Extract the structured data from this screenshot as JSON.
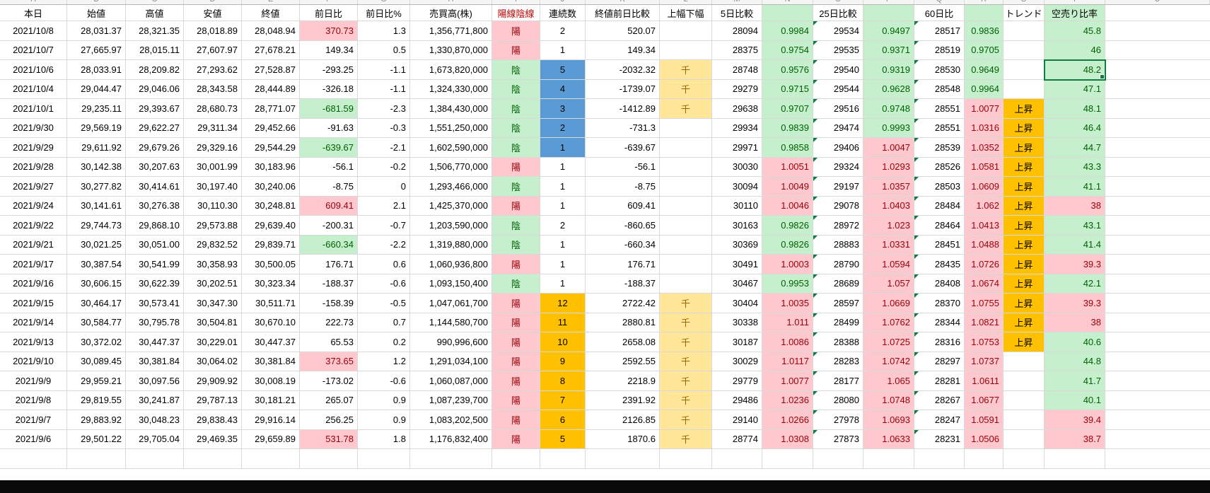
{
  "colors": {
    "good_bg": "#C6EFCE",
    "good_text": "#006100",
    "bad_bg": "#FFC7CE",
    "bad_text": "#9C0006",
    "streak_blue": "#5B9BD5",
    "streak_amber": "#FFC000",
    "flag_bg": "#FFE699",
    "flag_text": "#9C6500",
    "trend_bg": "#FFC000",
    "header_candle_text": "#C00000",
    "selection": "#107C41",
    "grid": "#D9D9D9"
  },
  "sheet": {
    "column_letters": [
      "A",
      "B",
      "C",
      "D",
      "E",
      "F",
      "G",
      "H",
      "I",
      "J",
      "K",
      "L",
      "M",
      "N",
      "O",
      "P",
      "Q",
      "R",
      "S",
      "T",
      "U"
    ],
    "headers": [
      {
        "key": "date",
        "label": "本日"
      },
      {
        "key": "open",
        "label": "始値"
      },
      {
        "key": "high",
        "label": "高値"
      },
      {
        "key": "low",
        "label": "安値"
      },
      {
        "key": "close",
        "label": "終値"
      },
      {
        "key": "change",
        "label": "前日比"
      },
      {
        "key": "change_pct",
        "label": "前日比%"
      },
      {
        "key": "volume",
        "label": "売買高(株)"
      },
      {
        "key": "candle",
        "label": "陽線陰線"
      },
      {
        "key": "streak",
        "label": "連続数"
      },
      {
        "key": "close_diff",
        "label": "終値前日比較"
      },
      {
        "key": "range_flag",
        "label": "上幅下幅"
      },
      {
        "key": "d5",
        "label": "5日比較"
      },
      {
        "key": "r1",
        "label": ""
      },
      {
        "key": "d25",
        "label": "25日比較"
      },
      {
        "key": "r2",
        "label": ""
      },
      {
        "key": "d60",
        "label": "60日比"
      },
      {
        "key": "r3",
        "label": ""
      },
      {
        "key": "trend",
        "label": "トレンド"
      },
      {
        "key": "short",
        "label": "空売り比率"
      }
    ],
    "selection": {
      "row_index": 2,
      "column": "short"
    },
    "rows": [
      {
        "date": "2021/10/8",
        "open": "28,031.37",
        "high": "28,321.35",
        "low": "28,018.89",
        "close": "28,048.94",
        "change": "370.73",
        "change_pct": "1.3",
        "volume": "1,356,771,800",
        "candle": "陽",
        "streak": "2",
        "streak_bg": "none",
        "close_diff": "520.07",
        "range_flag": "",
        "d5": "28094",
        "r1": "0.9984",
        "d25": "29534",
        "r2": "0.9497",
        "d60": "28517",
        "r3": "0.9836",
        "trend": "",
        "short": "45.8"
      },
      {
        "date": "2021/10/7",
        "open": "27,665.97",
        "high": "28,015.11",
        "low": "27,607.97",
        "close": "27,678.21",
        "change": "149.34",
        "change_pct": "0.5",
        "volume": "1,330,870,000",
        "candle": "陽",
        "streak": "1",
        "streak_bg": "none",
        "close_diff": "149.34",
        "range_flag": "",
        "d5": "28375",
        "r1": "0.9754",
        "d25": "29535",
        "r2": "0.9371",
        "d60": "28519",
        "r3": "0.9705",
        "trend": "",
        "short": "46"
      },
      {
        "date": "2021/10/6",
        "open": "28,033.91",
        "high": "28,209.82",
        "low": "27,293.62",
        "close": "27,528.87",
        "change": "-293.25",
        "change_pct": "-1.1",
        "volume": "1,673,820,000",
        "candle": "陰",
        "streak": "5",
        "streak_bg": "blue",
        "close_diff": "-2032.32",
        "range_flag": "千",
        "d5": "28748",
        "r1": "0.9576",
        "d25": "29540",
        "r2": "0.9319",
        "d60": "28530",
        "r3": "0.9649",
        "trend": "",
        "short": "48.2"
      },
      {
        "date": "2021/10/4",
        "open": "29,044.47",
        "high": "29,046.06",
        "low": "28,343.58",
        "close": "28,444.89",
        "change": "-326.18",
        "change_pct": "-1.1",
        "volume": "1,324,330,000",
        "candle": "陰",
        "streak": "4",
        "streak_bg": "blue",
        "close_diff": "-1739.07",
        "range_flag": "千",
        "d5": "29279",
        "r1": "0.9715",
        "d25": "29544",
        "r2": "0.9628",
        "d60": "28548",
        "r3": "0.9964",
        "trend": "",
        "short": "47.1"
      },
      {
        "date": "2021/10/1",
        "open": "29,235.11",
        "high": "29,393.67",
        "low": "28,680.73",
        "close": "28,771.07",
        "change": "-681.59",
        "change_pct": "-2.3",
        "volume": "1,384,430,000",
        "candle": "陰",
        "streak": "3",
        "streak_bg": "blue",
        "close_diff": "-1412.89",
        "range_flag": "千",
        "d5": "29638",
        "r1": "0.9707",
        "d25": "29516",
        "r2": "0.9748",
        "d60": "28551",
        "r3": "1.0077",
        "trend": "上昇",
        "short": "48.1"
      },
      {
        "date": "2021/9/30",
        "open": "29,569.19",
        "high": "29,622.27",
        "low": "29,311.34",
        "close": "29,452.66",
        "change": "-91.63",
        "change_pct": "-0.3",
        "volume": "1,551,250,000",
        "candle": "陰",
        "streak": "2",
        "streak_bg": "blue",
        "close_diff": "-731.3",
        "range_flag": "",
        "d5": "29934",
        "r1": "0.9839",
        "d25": "29474",
        "r2": "0.9993",
        "d60": "28551",
        "r3": "1.0316",
        "trend": "上昇",
        "short": "46.4"
      },
      {
        "date": "2021/9/29",
        "open": "29,611.92",
        "high": "29,679.26",
        "low": "29,329.16",
        "close": "29,544.29",
        "change": "-639.67",
        "change_pct": "-2.1",
        "volume": "1,602,590,000",
        "candle": "陰",
        "streak": "1",
        "streak_bg": "blue",
        "close_diff": "-639.67",
        "range_flag": "",
        "d5": "29971",
        "r1": "0.9858",
        "d25": "29406",
        "r2": "1.0047",
        "d60": "28539",
        "r3": "1.0352",
        "trend": "上昇",
        "short": "44.7"
      },
      {
        "date": "2021/9/28",
        "open": "30,142.38",
        "high": "30,207.63",
        "low": "30,001.99",
        "close": "30,183.96",
        "change": "-56.1",
        "change_pct": "-0.2",
        "volume": "1,506,770,000",
        "candle": "陽",
        "streak": "1",
        "streak_bg": "none",
        "close_diff": "-56.1",
        "range_flag": "",
        "d5": "30030",
        "r1": "1.0051",
        "d25": "29324",
        "r2": "1.0293",
        "d60": "28526",
        "r3": "1.0581",
        "trend": "上昇",
        "short": "43.3"
      },
      {
        "date": "2021/9/27",
        "open": "30,277.82",
        "high": "30,414.61",
        "low": "30,197.40",
        "close": "30,240.06",
        "change": "-8.75",
        "change_pct": "0",
        "volume": "1,293,466,000",
        "candle": "陰",
        "streak": "1",
        "streak_bg": "none",
        "close_diff": "-8.75",
        "range_flag": "",
        "d5": "30094",
        "r1": "1.0049",
        "d25": "29197",
        "r2": "1.0357",
        "d60": "28503",
        "r3": "1.0609",
        "trend": "上昇",
        "short": "41.1"
      },
      {
        "date": "2021/9/24",
        "open": "30,141.61",
        "high": "30,276.38",
        "low": "30,110.30",
        "close": "30,248.81",
        "change": "609.41",
        "change_pct": "2.1",
        "volume": "1,425,370,000",
        "candle": "陽",
        "streak": "1",
        "streak_bg": "none",
        "close_diff": "609.41",
        "range_flag": "",
        "d5": "30110",
        "r1": "1.0046",
        "d25": "29078",
        "r2": "1.0403",
        "d60": "28484",
        "r3": "1.062",
        "trend": "上昇",
        "short": "38"
      },
      {
        "date": "2021/9/22",
        "open": "29,744.73",
        "high": "29,868.10",
        "low": "29,573.88",
        "close": "29,639.40",
        "change": "-200.31",
        "change_pct": "-0.7",
        "volume": "1,203,590,000",
        "candle": "陰",
        "streak": "2",
        "streak_bg": "none",
        "close_diff": "-860.65",
        "range_flag": "",
        "d5": "30163",
        "r1": "0.9826",
        "d25": "28972",
        "r2": "1.023",
        "d60": "28464",
        "r3": "1.0413",
        "trend": "上昇",
        "short": "43.1"
      },
      {
        "date": "2021/9/21",
        "open": "30,021.25",
        "high": "30,051.00",
        "low": "29,832.52",
        "close": "29,839.71",
        "change": "-660.34",
        "change_pct": "-2.2",
        "volume": "1,319,880,000",
        "candle": "陰",
        "streak": "1",
        "streak_bg": "none",
        "close_diff": "-660.34",
        "range_flag": "",
        "d5": "30369",
        "r1": "0.9826",
        "d25": "28883",
        "r2": "1.0331",
        "d60": "28451",
        "r3": "1.0488",
        "trend": "上昇",
        "short": "41.4"
      },
      {
        "date": "2021/9/17",
        "open": "30,387.54",
        "high": "30,541.99",
        "low": "30,358.93",
        "close": "30,500.05",
        "change": "176.71",
        "change_pct": "0.6",
        "volume": "1,060,936,800",
        "candle": "陽",
        "streak": "1",
        "streak_bg": "none",
        "close_diff": "176.71",
        "range_flag": "",
        "d5": "30491",
        "r1": "1.0003",
        "d25": "28790",
        "r2": "1.0594",
        "d60": "28435",
        "r3": "1.0726",
        "trend": "上昇",
        "short": "39.3"
      },
      {
        "date": "2021/9/16",
        "open": "30,606.15",
        "high": "30,622.39",
        "low": "30,202.51",
        "close": "30,323.34",
        "change": "-188.37",
        "change_pct": "-0.6",
        "volume": "1,093,150,400",
        "candle": "陰",
        "streak": "1",
        "streak_bg": "none",
        "close_diff": "-188.37",
        "range_flag": "",
        "d5": "30467",
        "r1": "0.9953",
        "d25": "28689",
        "r2": "1.057",
        "d60": "28408",
        "r3": "1.0674",
        "trend": "上昇",
        "short": "42.1"
      },
      {
        "date": "2021/9/15",
        "open": "30,464.17",
        "high": "30,573.41",
        "low": "30,347.30",
        "close": "30,511.71",
        "change": "-158.39",
        "change_pct": "-0.5",
        "volume": "1,047,061,700",
        "candle": "陽",
        "streak": "12",
        "streak_bg": "amber",
        "close_diff": "2722.42",
        "range_flag": "千",
        "d5": "30404",
        "r1": "1.0035",
        "d25": "28597",
        "r2": "1.0669",
        "d60": "28370",
        "r3": "1.0755",
        "trend": "上昇",
        "short": "39.3"
      },
      {
        "date": "2021/9/14",
        "open": "30,584.77",
        "high": "30,795.78",
        "low": "30,504.81",
        "close": "30,670.10",
        "change": "222.73",
        "change_pct": "0.7",
        "volume": "1,144,580,700",
        "candle": "陽",
        "streak": "11",
        "streak_bg": "amber",
        "close_diff": "2880.81",
        "range_flag": "千",
        "d5": "30338",
        "r1": "1.011",
        "d25": "28499",
        "r2": "1.0762",
        "d60": "28344",
        "r3": "1.0821",
        "trend": "上昇",
        "short": "38"
      },
      {
        "date": "2021/9/13",
        "open": "30,372.02",
        "high": "30,447.37",
        "low": "30,229.01",
        "close": "30,447.37",
        "change": "65.53",
        "change_pct": "0.2",
        "volume": "990,996,600",
        "candle": "陽",
        "streak": "10",
        "streak_bg": "amber",
        "close_diff": "2658.08",
        "range_flag": "千",
        "d5": "30187",
        "r1": "1.0086",
        "d25": "28388",
        "r2": "1.0725",
        "d60": "28316",
        "r3": "1.0753",
        "trend": "上昇",
        "short": "40.6"
      },
      {
        "date": "2021/9/10",
        "open": "30,089.45",
        "high": "30,381.84",
        "low": "30,064.02",
        "close": "30,381.84",
        "change": "373.65",
        "change_pct": "1.2",
        "volume": "1,291,034,100",
        "candle": "陽",
        "streak": "9",
        "streak_bg": "amber",
        "close_diff": "2592.55",
        "range_flag": "千",
        "d5": "30029",
        "r1": "1.0117",
        "d25": "28283",
        "r2": "1.0742",
        "d60": "28297",
        "r3": "1.0737",
        "trend": "",
        "short": "44.8"
      },
      {
        "date": "2021/9/9",
        "open": "29,959.21",
        "high": "30,097.56",
        "low": "29,909.92",
        "close": "30,008.19",
        "change": "-173.02",
        "change_pct": "-0.6",
        "volume": "1,060,087,000",
        "candle": "陽",
        "streak": "8",
        "streak_bg": "amber",
        "close_diff": "2218.9",
        "range_flag": "千",
        "d5": "29779",
        "r1": "1.0077",
        "d25": "28177",
        "r2": "1.065",
        "d60": "28281",
        "r3": "1.0611",
        "trend": "",
        "short": "41.7"
      },
      {
        "date": "2021/9/8",
        "open": "29,819.55",
        "high": "30,241.87",
        "low": "29,787.13",
        "close": "30,181.21",
        "change": "265.07",
        "change_pct": "0.9",
        "volume": "1,087,239,700",
        "candle": "陽",
        "streak": "7",
        "streak_bg": "amber",
        "close_diff": "2391.92",
        "range_flag": "千",
        "d5": "29486",
        "r1": "1.0236",
        "d25": "28080",
        "r2": "1.0748",
        "d60": "28267",
        "r3": "1.0677",
        "trend": "",
        "short": "40.1"
      },
      {
        "date": "2021/9/7",
        "open": "29,883.92",
        "high": "30,048.23",
        "low": "29,838.43",
        "close": "29,916.14",
        "change": "256.25",
        "change_pct": "0.9",
        "volume": "1,083,202,500",
        "candle": "陽",
        "streak": "6",
        "streak_bg": "amber",
        "close_diff": "2126.85",
        "range_flag": "千",
        "d5": "29140",
        "r1": "1.0266",
        "d25": "27978",
        "r2": "1.0693",
        "d60": "28247",
        "r3": "1.0591",
        "trend": "",
        "short": "39.4"
      },
      {
        "date": "2021/9/6",
        "open": "29,501.22",
        "high": "29,705.04",
        "low": "29,469.35",
        "close": "29,659.89",
        "change": "531.78",
        "change_pct": "1.8",
        "volume": "1,176,832,400",
        "candle": "陽",
        "streak": "5",
        "streak_bg": "amber",
        "close_diff": "1870.6",
        "range_flag": "千",
        "d5": "28774",
        "r1": "1.0308",
        "d25": "27873",
        "r2": "1.0633",
        "d60": "28231",
        "r3": "1.0506",
        "trend": "",
        "short": "38.7"
      }
    ]
  }
}
